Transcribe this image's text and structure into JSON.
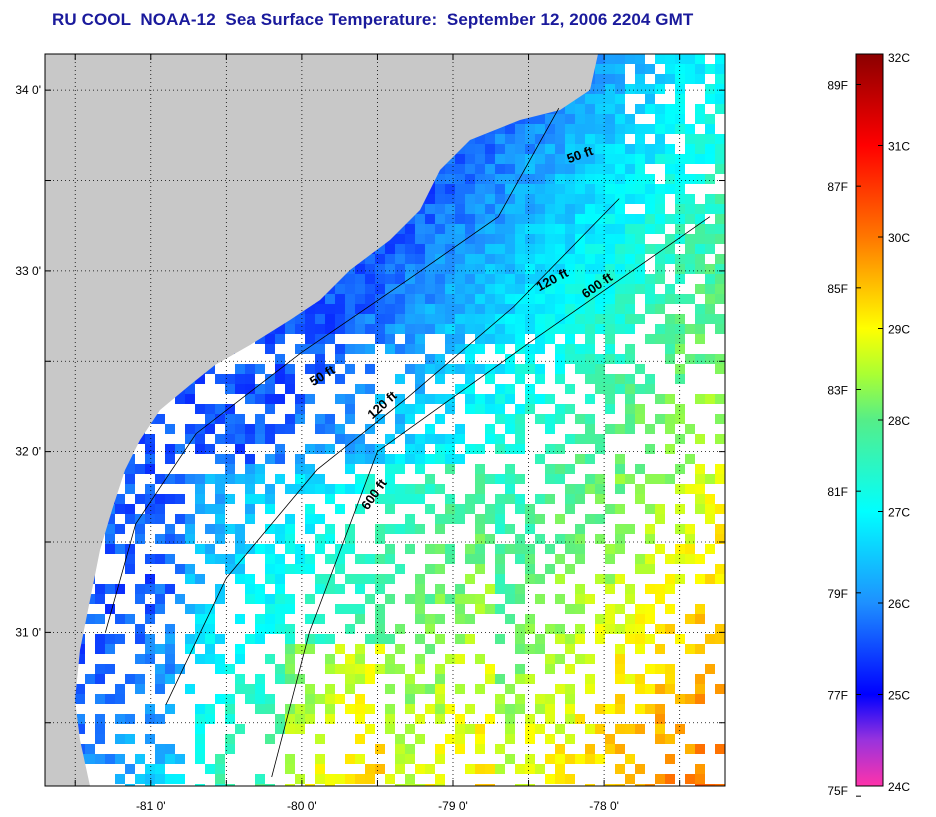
{
  "title": "RU COOL  NOAA-12  Sea Surface Temperature:  September 12, 2006 2204 GMT",
  "map": {
    "lon_range": [
      -81.7,
      -77.2
    ],
    "lat_range": [
      30.15,
      34.2
    ],
    "lat_ticks": [
      {
        "value": 34.0,
        "label": "34 0'"
      },
      {
        "value": 33.5,
        "label": ""
      },
      {
        "value": 33.0,
        "label": "33 0'"
      },
      {
        "value": 32.5,
        "label": ""
      },
      {
        "value": 32.0,
        "label": "32 0'"
      },
      {
        "value": 31.5,
        "label": ""
      },
      {
        "value": 31.0,
        "label": "31 0'"
      },
      {
        "value": 30.5,
        "label": ""
      }
    ],
    "lon_ticks": [
      {
        "value": -81.5,
        "label": ""
      },
      {
        "value": -81.0,
        "label": "-81 0'"
      },
      {
        "value": -80.5,
        "label": ""
      },
      {
        "value": -80.0,
        "label": "-80 0'"
      },
      {
        "value": -79.5,
        "label": ""
      },
      {
        "value": -79.0,
        "label": "-79 0'"
      },
      {
        "value": -78.5,
        "label": ""
      },
      {
        "value": -78.0,
        "label": "-78 0'"
      },
      {
        "value": -77.5,
        "label": ""
      }
    ],
    "land_color": "#c8c8c8",
    "cloud_color": "#ffffff",
    "contour_labels": [
      {
        "text": "50 ft",
        "lon": -78.15,
        "lat": 33.62,
        "rot": -20
      },
      {
        "text": "120 ft",
        "lon": -78.33,
        "lat": 32.93,
        "rot": -28
      },
      {
        "text": "600 ft",
        "lon": -78.03,
        "lat": 32.9,
        "rot": -35
      },
      {
        "text": "50 ft",
        "lon": -79.85,
        "lat": 32.4,
        "rot": -32
      },
      {
        "text": "120 ft",
        "lon": -79.45,
        "lat": 32.24,
        "rot": -42
      },
      {
        "text": "600 ft",
        "lon": -79.5,
        "lat": 31.75,
        "rot": -55
      }
    ]
  },
  "colorbar": {
    "celsius_ticks": [
      {
        "value": 32,
        "label": "32C"
      },
      {
        "value": 31,
        "label": "31C"
      },
      {
        "value": 30,
        "label": "30C"
      },
      {
        "value": 29,
        "label": "29C"
      },
      {
        "value": 28,
        "label": "28C"
      },
      {
        "value": 27,
        "label": "27C"
      },
      {
        "value": 26,
        "label": "26C"
      },
      {
        "value": 25,
        "label": "25C"
      },
      {
        "value": 24,
        "label": "24C"
      }
    ],
    "fahrenheit_ticks": [
      {
        "value": 89,
        "label": "89F"
      },
      {
        "value": 87,
        "label": "87F"
      },
      {
        "value": 85,
        "label": "85F"
      },
      {
        "value": 83,
        "label": "83F"
      },
      {
        "value": 81,
        "label": "81F"
      },
      {
        "value": 79,
        "label": "79F"
      },
      {
        "value": 77,
        "label": "77F"
      },
      {
        "value": 75,
        "label": "75F"
      }
    ],
    "range_c": [
      24,
      32
    ],
    "color_stops": [
      {
        "c": 24.0,
        "color": "#ff33aa"
      },
      {
        "c": 24.5,
        "color": "#9933dd"
      },
      {
        "c": 25.0,
        "color": "#0000ff"
      },
      {
        "c": 26.0,
        "color": "#1e90ff"
      },
      {
        "c": 27.0,
        "color": "#00ffff"
      },
      {
        "c": 28.0,
        "color": "#55ee88"
      },
      {
        "c": 28.5,
        "color": "#aaff33"
      },
      {
        "c": 29.0,
        "color": "#ffff00"
      },
      {
        "c": 29.5,
        "color": "#ffbb00"
      },
      {
        "c": 30.0,
        "color": "#ff7700"
      },
      {
        "c": 31.0,
        "color": "#ff0000"
      },
      {
        "c": 32.0,
        "color": "#8b0000"
      }
    ]
  }
}
